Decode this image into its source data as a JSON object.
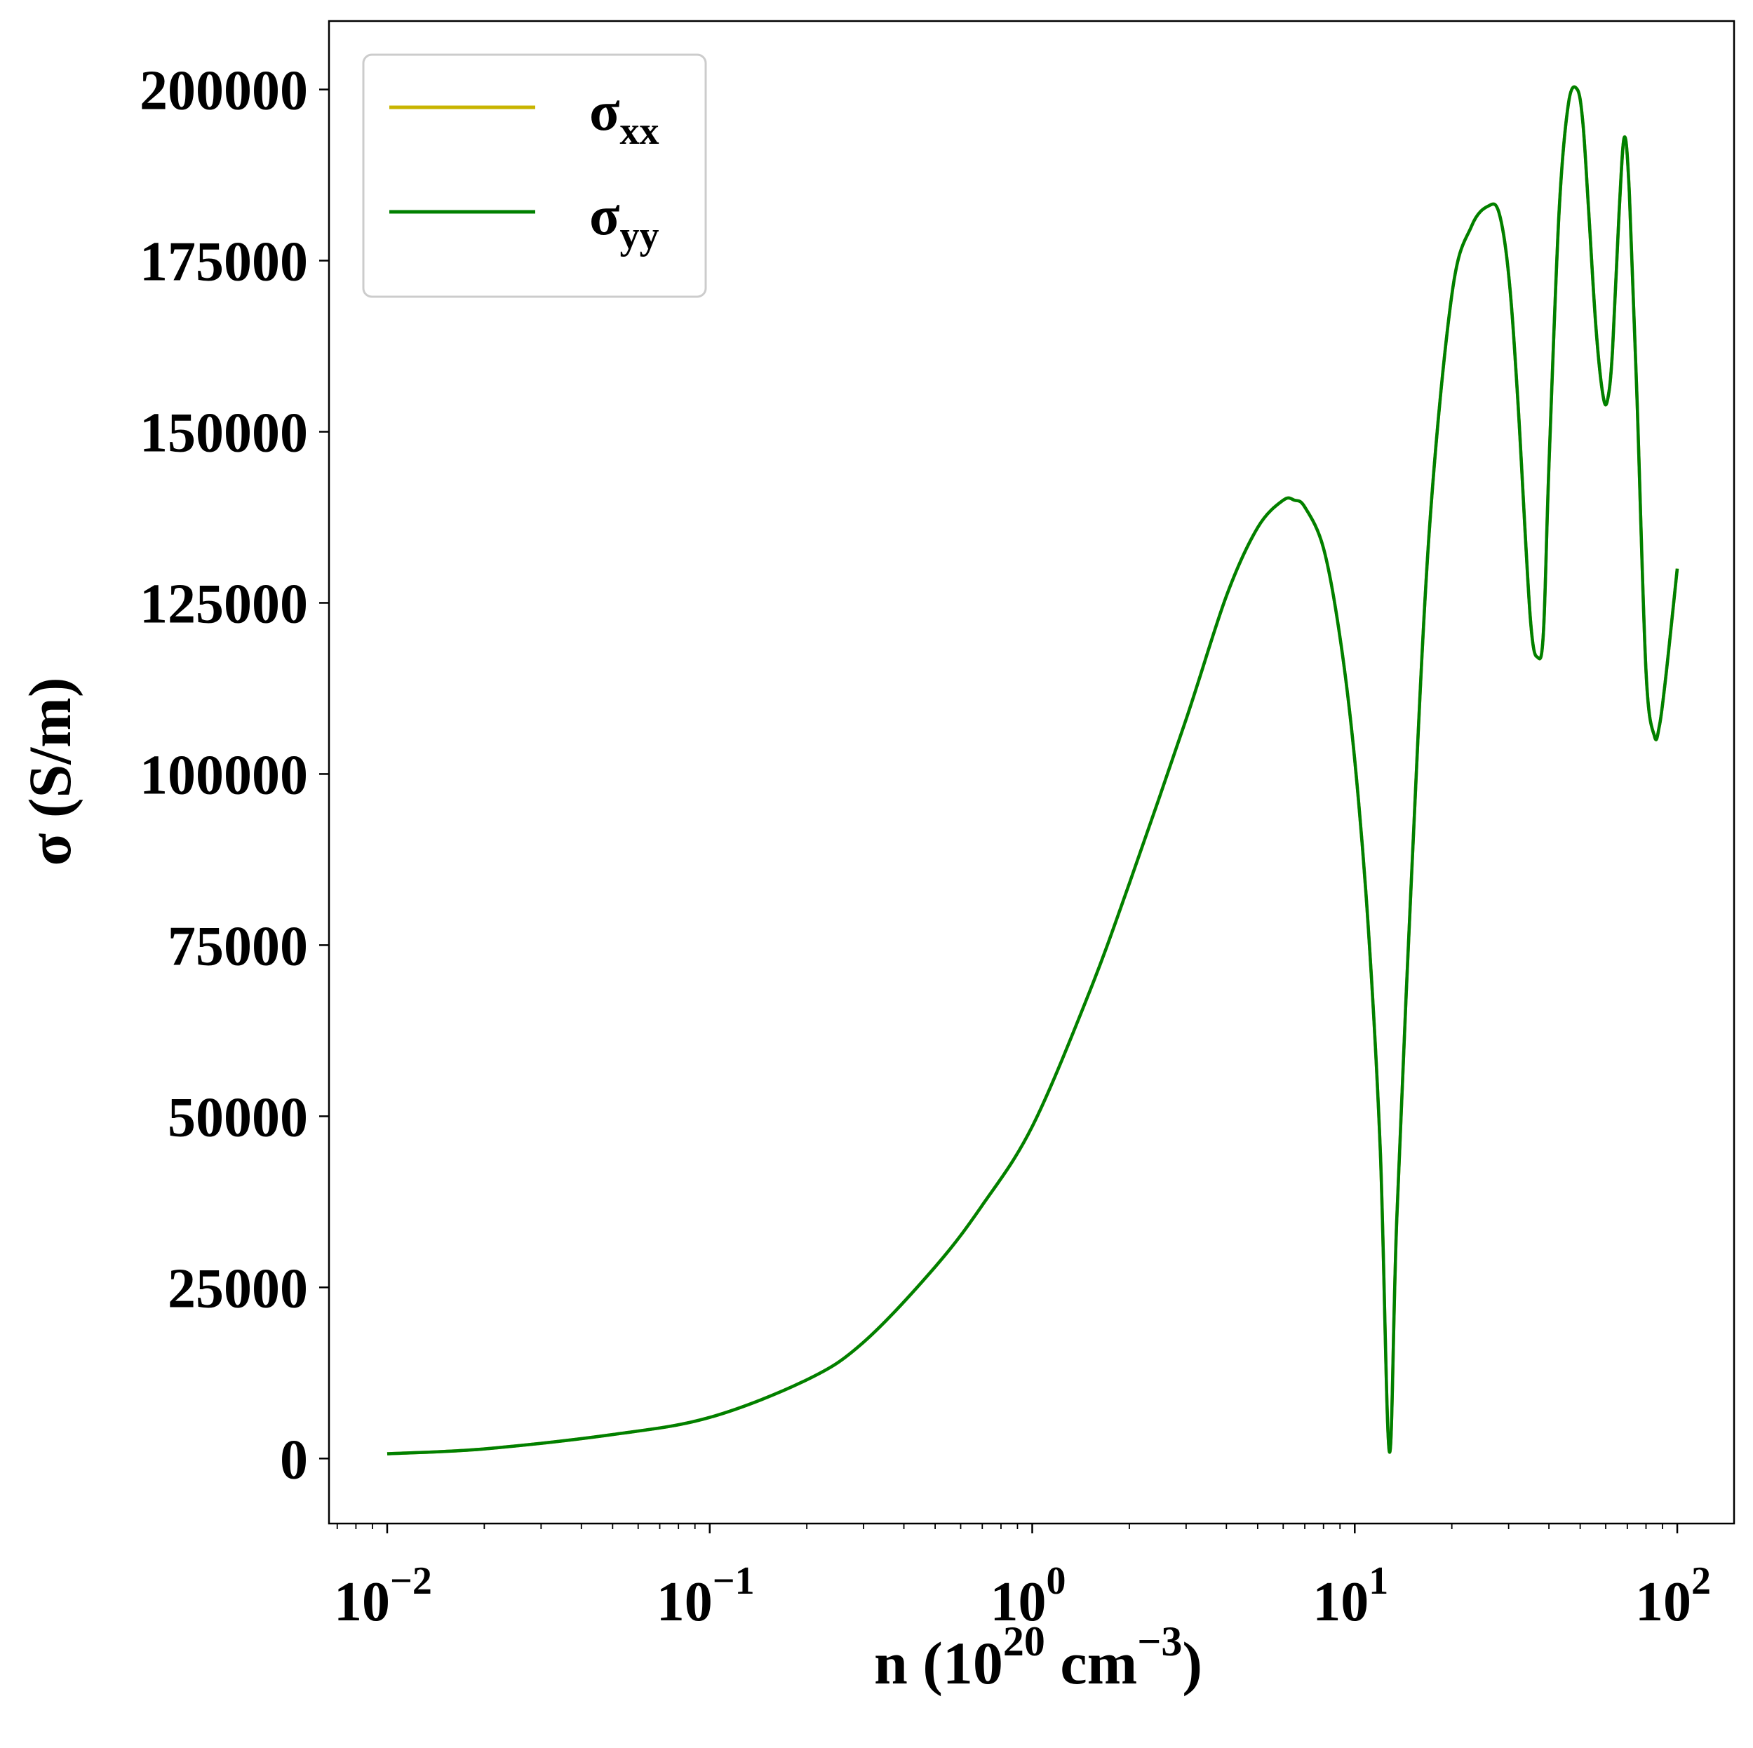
{
  "chart_data": {
    "type": "line",
    "xscale": "log",
    "xlim": [
      0.0066,
      150
    ],
    "ylim": [
      -9500,
      210000
    ],
    "grid": false,
    "legend_position": "top-left",
    "xlabel": {
      "main": "n (10",
      "sup1": "20",
      "mid": " cm",
      "sup2": "−3",
      "end": ")"
    },
    "ylabel": "σ (S/m)",
    "x_ticks": [
      {
        "value": 0.01,
        "base": "10",
        "exp": "−2"
      },
      {
        "value": 0.1,
        "base": "10",
        "exp": "−1"
      },
      {
        "value": 1,
        "base": "10",
        "exp": "0"
      },
      {
        "value": 10,
        "base": "10",
        "exp": "1"
      },
      {
        "value": 100,
        "base": "10",
        "exp": "2"
      }
    ],
    "y_ticks": [
      {
        "value": 0,
        "label": "0"
      },
      {
        "value": 25000,
        "label": "25000"
      },
      {
        "value": 50000,
        "label": "50000"
      },
      {
        "value": 75000,
        "label": "75000"
      },
      {
        "value": 100000,
        "label": "100000"
      },
      {
        "value": 125000,
        "label": "125000"
      },
      {
        "value": 150000,
        "label": "150000"
      },
      {
        "value": 175000,
        "label": "175000"
      },
      {
        "value": 200000,
        "label": "200000"
      }
    ],
    "series": [
      {
        "name": "σ",
        "name_sub": "xx",
        "color": "#c8b400",
        "x": [
          0.01,
          0.02,
          0.05,
          0.1,
          0.2,
          0.3,
          0.5,
          0.7,
          1.0,
          1.5,
          2.0,
          3.0,
          4.0,
          5.0,
          6.0,
          6.5,
          7.0,
          8.0,
          9.0,
          10.0,
          11.0,
          12.0,
          12.8,
          13.5,
          15.0,
          17.0,
          20.0,
          23.0,
          26.0,
          28.0,
          30.0,
          32.0,
          35.0,
          37.0,
          38.5,
          40.0,
          43.0,
          46.0,
          49.0,
          51.0,
          53.0,
          56.0,
          59.0,
          61.0,
          63.0,
          66.0,
          68.5,
          71.0,
          75.0,
          80.0,
          85.0,
          88.0,
          91.0,
          95.0,
          100.0
        ],
        "y": [
          700,
          1400,
          3500,
          6000,
          11500,
          17000,
          28000,
          37000,
          48500,
          68000,
          84000,
          108000,
          126000,
          136000,
          140000,
          140000,
          139000,
          133000,
          120000,
          102000,
          78000,
          45000,
          1000,
          35000,
          85000,
          135000,
          170000,
          180000,
          183000,
          182000,
          173000,
          155000,
          123000,
          117000,
          121000,
          145000,
          182000,
          198000,
          200000,
          195000,
          183000,
          165000,
          155000,
          155000,
          162000,
          182000,
          193000,
          185000,
          155000,
          115000,
          105500,
          107000,
          112000,
          120000,
          130000
        ]
      },
      {
        "name": "σ",
        "name_sub": "yy",
        "color": "#008000",
        "x": [
          0.01,
          0.02,
          0.05,
          0.1,
          0.2,
          0.3,
          0.5,
          0.7,
          1.0,
          1.5,
          2.0,
          3.0,
          4.0,
          5.0,
          6.0,
          6.5,
          7.0,
          8.0,
          9.0,
          10.0,
          11.0,
          12.0,
          12.8,
          13.5,
          15.0,
          17.0,
          20.0,
          23.0,
          26.0,
          28.0,
          30.0,
          32.0,
          35.0,
          37.0,
          38.5,
          40.0,
          43.0,
          46.0,
          49.0,
          51.0,
          53.0,
          56.0,
          59.0,
          61.0,
          63.0,
          66.0,
          68.5,
          71.0,
          75.0,
          80.0,
          85.0,
          88.0,
          91.0,
          95.0,
          100.0
        ],
        "y": [
          700,
          1400,
          3500,
          6000,
          11500,
          17000,
          28000,
          37000,
          48500,
          68000,
          84000,
          108000,
          126000,
          136000,
          140000,
          140000,
          139000,
          133000,
          120000,
          102000,
          78000,
          45000,
          1000,
          35000,
          85000,
          135000,
          170000,
          180000,
          183000,
          182000,
          173000,
          155000,
          123000,
          117000,
          121000,
          145000,
          182000,
          198000,
          200000,
          195000,
          183000,
          165000,
          155000,
          155000,
          162000,
          182000,
          193000,
          185000,
          155000,
          115000,
          105500,
          107000,
          112000,
          120000,
          130000
        ]
      }
    ]
  }
}
